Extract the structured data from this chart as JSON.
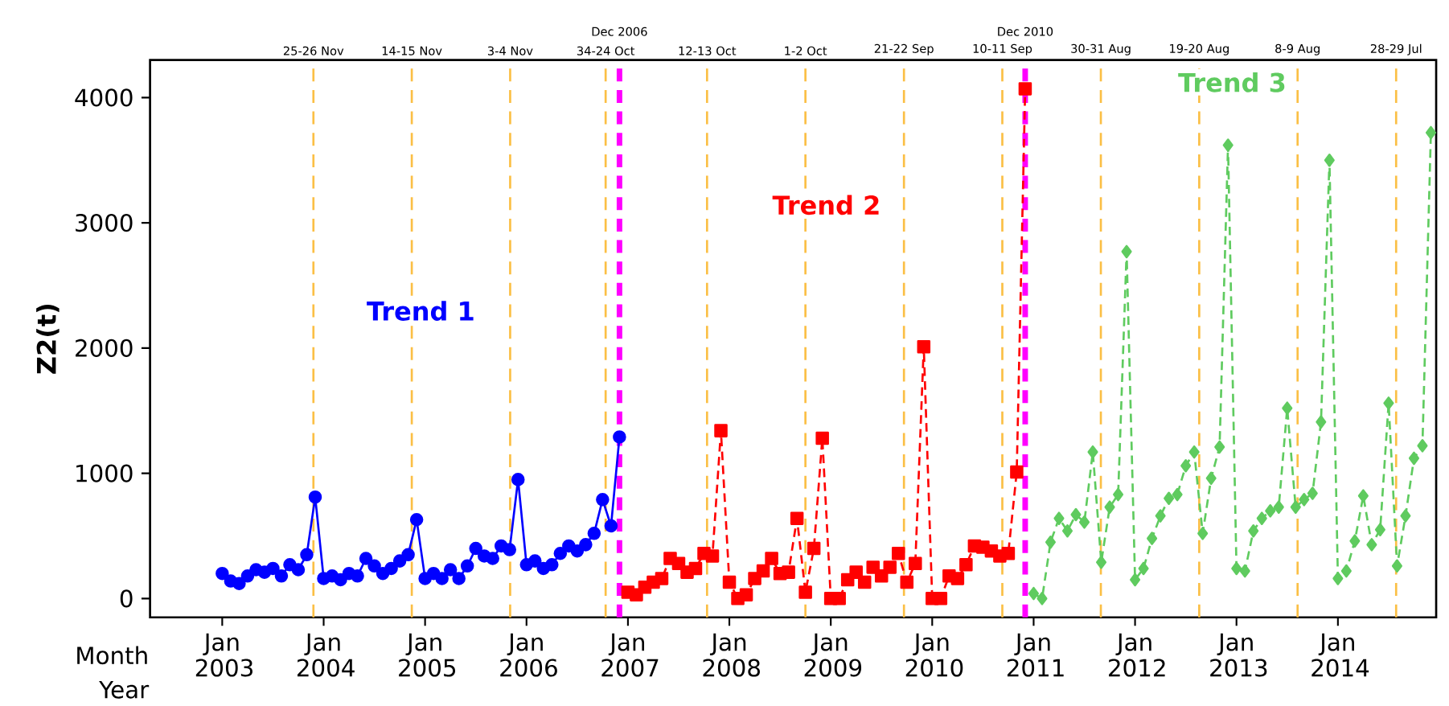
{
  "chart_data": {
    "type": "line",
    "ylabel": "Z2(t)",
    "annotations": [
      "Month",
      "Year"
    ],
    "xlim": [
      "2002-04-15",
      "2014-12-20"
    ],
    "ylim": [
      -150,
      4300
    ],
    "yticks": [
      0,
      1000,
      2000,
      3000,
      4000
    ],
    "xticks": [
      {
        "value": "2003-01",
        "label": "Jan 2003"
      },
      {
        "value": "2004-01",
        "label": "Jan 2004"
      },
      {
        "value": "2005-01",
        "label": "Jan 2005"
      },
      {
        "value": "2006-01",
        "label": "Jan 2006"
      },
      {
        "value": "2007-01",
        "label": "Jan 2007"
      },
      {
        "value": "2008-01",
        "label": "Jan 2008"
      },
      {
        "value": "2009-01",
        "label": "Jan 2009"
      },
      {
        "value": "2010-01",
        "label": "Jan 2010"
      },
      {
        "value": "2011-01",
        "label": "Jan 2011"
      },
      {
        "value": "2012-01",
        "label": "Jan 2012"
      },
      {
        "value": "2013-01",
        "label": "Jan 2013"
      },
      {
        "value": "2014-01",
        "label": "Jan 2014"
      }
    ],
    "grid": false,
    "series": [
      {
        "name": "Trend 1",
        "color": "#0000ff",
        "marker": "circle",
        "line_style": "solid",
        "x": [
          "2003-01",
          "2003-02",
          "2003-03",
          "2003-04",
          "2003-05",
          "2003-06",
          "2003-07",
          "2003-08",
          "2003-09",
          "2003-10",
          "2003-11",
          "2003-12",
          "2004-01",
          "2004-02",
          "2004-03",
          "2004-04",
          "2004-05",
          "2004-06",
          "2004-07",
          "2004-08",
          "2004-09",
          "2004-10",
          "2004-11",
          "2004-12",
          "2005-01",
          "2005-02",
          "2005-03",
          "2005-04",
          "2005-05",
          "2005-06",
          "2005-07",
          "2005-08",
          "2005-09",
          "2005-10",
          "2005-11",
          "2005-12",
          "2006-01",
          "2006-02",
          "2006-03",
          "2006-04",
          "2006-05",
          "2006-06",
          "2006-07",
          "2006-08",
          "2006-09",
          "2006-10",
          "2006-11",
          "2006-12"
        ],
        "values": [
          200,
          140,
          120,
          180,
          230,
          210,
          240,
          180,
          270,
          230,
          350,
          810,
          160,
          180,
          150,
          200,
          180,
          320,
          260,
          200,
          240,
          300,
          350,
          630,
          160,
          200,
          160,
          230,
          160,
          260,
          400,
          340,
          320,
          420,
          390,
          950,
          270,
          300,
          240,
          270,
          360,
          420,
          380,
          430,
          520,
          790,
          580,
          1290
        ]
      },
      {
        "name": "Trend 2",
        "color": "#ff0000",
        "marker": "square",
        "line_style": "dashed",
        "x": [
          "2007-01",
          "2007-02",
          "2007-03",
          "2007-04",
          "2007-05",
          "2007-06",
          "2007-07",
          "2007-08",
          "2007-09",
          "2007-10",
          "2007-11",
          "2007-12",
          "2008-01",
          "2008-02",
          "2008-03",
          "2008-04",
          "2008-05",
          "2008-06",
          "2008-07",
          "2008-08",
          "2008-09",
          "2008-10",
          "2008-11",
          "2008-12",
          "2009-01",
          "2009-02",
          "2009-03",
          "2009-04",
          "2009-05",
          "2009-06",
          "2009-07",
          "2009-08",
          "2009-09",
          "2009-10",
          "2009-11",
          "2009-12",
          "2010-01",
          "2010-02",
          "2010-03",
          "2010-04",
          "2010-05",
          "2010-06",
          "2010-07",
          "2010-08",
          "2010-09",
          "2010-10",
          "2010-11",
          "2010-12"
        ],
        "values": [
          50,
          30,
          90,
          130,
          160,
          320,
          280,
          210,
          240,
          360,
          340,
          1340,
          130,
          0,
          30,
          160,
          220,
          320,
          200,
          210,
          640,
          50,
          400,
          1280,
          0,
          0,
          150,
          210,
          130,
          250,
          180,
          250,
          360,
          130,
          280,
          2010,
          0,
          0,
          180,
          160,
          270,
          420,
          410,
          380,
          340,
          360,
          1010,
          4070
        ]
      },
      {
        "name": "Trend 3",
        "color": "#5fcb5f",
        "marker": "diamond",
        "line_style": "dashed",
        "x": [
          "2011-01",
          "2011-02",
          "2011-03",
          "2011-04",
          "2011-05",
          "2011-06",
          "2011-07",
          "2011-08",
          "2011-09",
          "2011-10",
          "2011-11",
          "2011-12",
          "2012-01",
          "2012-02",
          "2012-03",
          "2012-04",
          "2012-05",
          "2012-06",
          "2012-07",
          "2012-08",
          "2012-09",
          "2012-10",
          "2012-11",
          "2012-12",
          "2013-01",
          "2013-02",
          "2013-03",
          "2013-04",
          "2013-05",
          "2013-06",
          "2013-07",
          "2013-08",
          "2013-09",
          "2013-10",
          "2013-11",
          "2013-12",
          "2014-01",
          "2014-02",
          "2014-03",
          "2014-04",
          "2014-05",
          "2014-06",
          "2014-07",
          "2014-08",
          "2014-09",
          "2014-10",
          "2014-11",
          "2014-12"
        ],
        "values": [
          40,
          0,
          450,
          640,
          540,
          670,
          610,
          1170,
          290,
          730,
          830,
          2770,
          150,
          240,
          480,
          660,
          800,
          830,
          1060,
          1170,
          520,
          960,
          1210,
          3620,
          240,
          220,
          540,
          640,
          700,
          730,
          1520,
          730,
          790,
          840,
          1410,
          3500,
          160,
          220,
          460,
          820,
          430,
          550,
          1560,
          260,
          660,
          1120,
          1220,
          3720
        ]
      }
    ],
    "ref_lines": [
      {
        "axis": "x",
        "value": "2003-11-25",
        "label": "25-26 Nov",
        "color": "#fbbf45",
        "line_style": "dashed"
      },
      {
        "axis": "x",
        "value": "2004-11-14",
        "label": "14-15 Nov",
        "color": "#fbbf45",
        "line_style": "dashed"
      },
      {
        "axis": "x",
        "value": "2005-11-03",
        "label": "3-4 Nov",
        "color": "#fbbf45",
        "line_style": "dashed"
      },
      {
        "axis": "x",
        "value": "2006-10-12",
        "label": "34-24 Oct",
        "color": "#fbbf45",
        "line_style": "dashed"
      },
      {
        "axis": "x",
        "value": "2006-12",
        "label": "Dec 2006",
        "color": "#ff00ff",
        "line_style": "dashed"
      },
      {
        "axis": "x",
        "value": "2007-10-12",
        "label": "12-13 Oct",
        "color": "#fbbf45",
        "line_style": "dashed"
      },
      {
        "axis": "x",
        "value": "2008-10-01",
        "label": "1-2 Oct",
        "color": "#fbbf45",
        "line_style": "dashed"
      },
      {
        "axis": "x",
        "value": "2009-09-21",
        "label": "21-22 Sep",
        "color": "#fbbf45",
        "line_style": "dashed"
      },
      {
        "axis": "x",
        "value": "2010-09-10",
        "label": "10-11 Sep",
        "color": "#fbbf45",
        "line_style": "dashed"
      },
      {
        "axis": "x",
        "value": "2010-12",
        "label": "Dec 2010",
        "color": "#ff00ff",
        "line_style": "dashed"
      },
      {
        "axis": "x",
        "value": "2011-08-30",
        "label": "30-31 Aug",
        "color": "#fbbf45",
        "line_style": "dashed"
      },
      {
        "axis": "x",
        "value": "2012-08-19",
        "label": "19-20 Aug",
        "color": "#fbbf45",
        "line_style": "dashed"
      },
      {
        "axis": "x",
        "value": "2013-08-08",
        "label": "8-9 Aug",
        "color": "#fbbf45",
        "line_style": "dashed"
      },
      {
        "axis": "x",
        "value": "2014-07-28",
        "label": "28-29 Jul",
        "color": "#fbbf45",
        "line_style": "dashed"
      }
    ]
  }
}
